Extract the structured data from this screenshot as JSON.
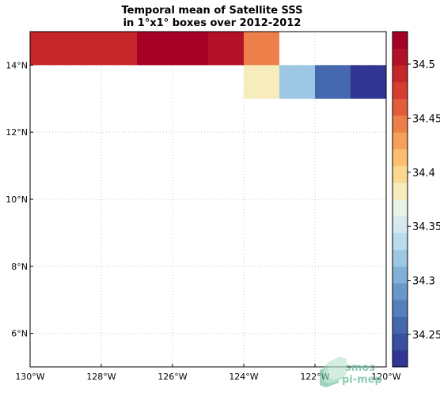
{
  "chart_data": {
    "type": "heatmap",
    "title_line1": "Temporal mean of Satellite SSS",
    "title_line2": "in 1°x1° boxes over 2012-2012",
    "xlim": [
      -130,
      -120
    ],
    "ylim": [
      5,
      15
    ],
    "x_ticks": [
      {
        "value": -130,
        "label": "130°W"
      },
      {
        "value": -128,
        "label": "128°W"
      },
      {
        "value": -126,
        "label": "126°W"
      },
      {
        "value": -124,
        "label": "124°W"
      },
      {
        "value": -122,
        "label": "122°W"
      },
      {
        "value": -120,
        "label": "120°W"
      }
    ],
    "y_ticks": [
      {
        "value": 6,
        "label": "6°N"
      },
      {
        "value": 8,
        "label": "8°N"
      },
      {
        "value": 10,
        "label": "10°N"
      },
      {
        "value": 12,
        "label": "12°N"
      },
      {
        "value": 14,
        "label": "14°N"
      }
    ],
    "grid": true,
    "cells": [
      {
        "lon_min": -130,
        "lon_max": -129,
        "lat_min": 14,
        "lat_max": 15,
        "value": 34.485
      },
      {
        "lon_min": -129,
        "lon_max": -128,
        "lat_min": 14,
        "lat_max": 15,
        "value": 34.495
      },
      {
        "lon_min": -128,
        "lon_max": -127,
        "lat_min": 14,
        "lat_max": 15,
        "value": 34.495
      },
      {
        "lon_min": -127,
        "lon_max": -126,
        "lat_min": 14,
        "lat_max": 15,
        "value": 34.525
      },
      {
        "lon_min": -126,
        "lon_max": -125,
        "lat_min": 14,
        "lat_max": 15,
        "value": 34.525
      },
      {
        "lon_min": -125,
        "lon_max": -124,
        "lat_min": 14,
        "lat_max": 15,
        "value": 34.505
      },
      {
        "lon_min": -124,
        "lon_max": -123,
        "lat_min": 14,
        "lat_max": 15,
        "value": 34.445
      },
      {
        "lon_min": -124,
        "lon_max": -123,
        "lat_min": 13,
        "lat_max": 14,
        "value": 34.385
      },
      {
        "lon_min": -123,
        "lon_max": -122,
        "lat_min": 13,
        "lat_max": 14,
        "value": 34.325
      },
      {
        "lon_min": -122,
        "lon_max": -121,
        "lat_min": 13,
        "lat_max": 14,
        "value": 34.255
      },
      {
        "lon_min": -121,
        "lon_max": -120,
        "lat_min": 13,
        "lat_max": 14,
        "value": 34.235
      }
    ],
    "colorbar": {
      "vmin": 34.22,
      "vmax": 34.53,
      "colors": [
        "#313695",
        "#3a4fa0",
        "#4467ad",
        "#5580bb",
        "#6a98c8",
        "#82b0d6",
        "#9dc7e2",
        "#b9dbeb",
        "#d4eaf0",
        "#e9f4e6",
        "#f6ecbc",
        "#fbd890",
        "#fbbf6f",
        "#f6a05a",
        "#ee7f4a",
        "#e35c3c",
        "#d63d31",
        "#c5262a",
        "#b31128",
        "#a50026"
      ],
      "ticks": [
        {
          "value": 34.25,
          "label": "34.25"
        },
        {
          "value": 34.3,
          "label": "34.3"
        },
        {
          "value": 34.35,
          "label": "34.35"
        },
        {
          "value": 34.4,
          "label": "34.4"
        },
        {
          "value": 34.45,
          "label": "34.45"
        },
        {
          "value": 34.5,
          "label": "34.5"
        }
      ]
    }
  },
  "logo": {
    "line1": "smos",
    "line2": "pi-mep",
    "color": "#7cc6a8"
  }
}
